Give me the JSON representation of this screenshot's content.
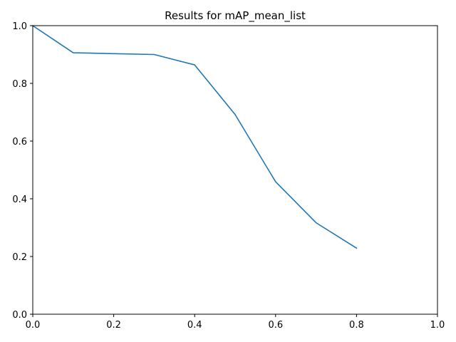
{
  "chart_data": {
    "type": "line",
    "title": "Results for mAP_mean_list",
    "xlabel": "",
    "ylabel": "",
    "xlim": [
      0.0,
      1.0
    ],
    "ylim": [
      0.0,
      1.0
    ],
    "x_ticks": [
      "0.0",
      "0.2",
      "0.4",
      "0.6",
      "0.8",
      "1.0"
    ],
    "y_ticks": [
      "0.0",
      "0.2",
      "0.4",
      "0.6",
      "0.8",
      "1.0"
    ],
    "grid": false,
    "legend": false,
    "series": [
      {
        "color": "#1f77b4",
        "x": [
          0.0,
          0.1,
          0.2,
          0.3,
          0.4,
          0.5,
          0.6,
          0.7,
          0.8
        ],
        "y": [
          1.0,
          0.906,
          0.903,
          0.9,
          0.864,
          0.692,
          0.459,
          0.317,
          0.229
        ]
      }
    ]
  }
}
